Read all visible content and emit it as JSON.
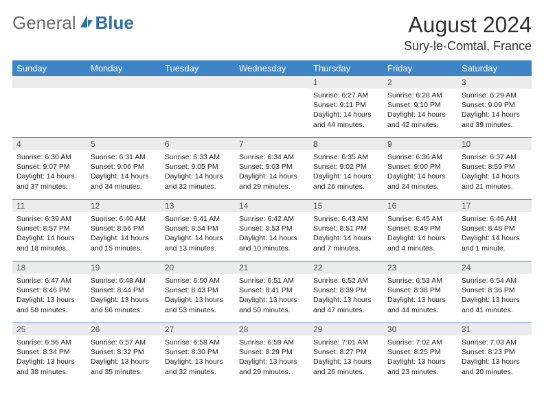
{
  "logo": {
    "general": "General",
    "blue": "Blue"
  },
  "header": {
    "title": "August 2024",
    "location": "Sury-le-Comtal, France"
  },
  "colors": {
    "header_bg": "#3d85c6",
    "header_text": "#ffffff",
    "daynum_bg": "#ececec",
    "row_border": "#3d85c6",
    "logo_gray": "#6b6b6b",
    "logo_blue": "#2f6fa8"
  },
  "weekdays": [
    "Sunday",
    "Monday",
    "Tuesday",
    "Wednesday",
    "Thursday",
    "Friday",
    "Saturday"
  ],
  "weeks": [
    [
      {
        "day": "",
        "lines": []
      },
      {
        "day": "",
        "lines": []
      },
      {
        "day": "",
        "lines": []
      },
      {
        "day": "",
        "lines": []
      },
      {
        "day": "1",
        "lines": [
          "Sunrise: 6:27 AM",
          "Sunset: 9:11 PM",
          "Daylight: 14 hours",
          "and 44 minutes."
        ]
      },
      {
        "day": "2",
        "lines": [
          "Sunrise: 6:28 AM",
          "Sunset: 9:10 PM",
          "Daylight: 14 hours",
          "and 42 minutes."
        ]
      },
      {
        "day": "3",
        "lines": [
          "Sunrise: 6:29 AM",
          "Sunset: 9:09 PM",
          "Daylight: 14 hours",
          "and 39 minutes."
        ]
      }
    ],
    [
      {
        "day": "4",
        "lines": [
          "Sunrise: 6:30 AM",
          "Sunset: 9:07 PM",
          "Daylight: 14 hours",
          "and 37 minutes."
        ]
      },
      {
        "day": "5",
        "lines": [
          "Sunrise: 6:31 AM",
          "Sunset: 9:06 PM",
          "Daylight: 14 hours",
          "and 34 minutes."
        ]
      },
      {
        "day": "6",
        "lines": [
          "Sunrise: 6:33 AM",
          "Sunset: 9:05 PM",
          "Daylight: 14 hours",
          "and 32 minutes."
        ]
      },
      {
        "day": "7",
        "lines": [
          "Sunrise: 6:34 AM",
          "Sunset: 9:03 PM",
          "Daylight: 14 hours",
          "and 29 minutes."
        ]
      },
      {
        "day": "8",
        "lines": [
          "Sunrise: 6:35 AM",
          "Sunset: 9:02 PM",
          "Daylight: 14 hours",
          "and 26 minutes."
        ]
      },
      {
        "day": "9",
        "lines": [
          "Sunrise: 6:36 AM",
          "Sunset: 9:00 PM",
          "Daylight: 14 hours",
          "and 24 minutes."
        ]
      },
      {
        "day": "10",
        "lines": [
          "Sunrise: 6:37 AM",
          "Sunset: 8:59 PM",
          "Daylight: 14 hours",
          "and 21 minutes."
        ]
      }
    ],
    [
      {
        "day": "11",
        "lines": [
          "Sunrise: 6:39 AM",
          "Sunset: 8:57 PM",
          "Daylight: 14 hours",
          "and 18 minutes."
        ]
      },
      {
        "day": "12",
        "lines": [
          "Sunrise: 6:40 AM",
          "Sunset: 8:56 PM",
          "Daylight: 14 hours",
          "and 15 minutes."
        ]
      },
      {
        "day": "13",
        "lines": [
          "Sunrise: 6:41 AM",
          "Sunset: 8:54 PM",
          "Daylight: 14 hours",
          "and 13 minutes."
        ]
      },
      {
        "day": "14",
        "lines": [
          "Sunrise: 6:42 AM",
          "Sunset: 8:53 PM",
          "Daylight: 14 hours",
          "and 10 minutes."
        ]
      },
      {
        "day": "15",
        "lines": [
          "Sunrise: 6:43 AM",
          "Sunset: 8:51 PM",
          "Daylight: 14 hours",
          "and 7 minutes."
        ]
      },
      {
        "day": "16",
        "lines": [
          "Sunrise: 6:45 AM",
          "Sunset: 8:49 PM",
          "Daylight: 14 hours",
          "and 4 minutes."
        ]
      },
      {
        "day": "17",
        "lines": [
          "Sunrise: 6:46 AM",
          "Sunset: 8:48 PM",
          "Daylight: 14 hours",
          "and 1 minute."
        ]
      }
    ],
    [
      {
        "day": "18",
        "lines": [
          "Sunrise: 6:47 AM",
          "Sunset: 8:46 PM",
          "Daylight: 13 hours",
          "and 58 minutes."
        ]
      },
      {
        "day": "19",
        "lines": [
          "Sunrise: 6:48 AM",
          "Sunset: 8:44 PM",
          "Daylight: 13 hours",
          "and 56 minutes."
        ]
      },
      {
        "day": "20",
        "lines": [
          "Sunrise: 6:50 AM",
          "Sunset: 8:43 PM",
          "Daylight: 13 hours",
          "and 53 minutes."
        ]
      },
      {
        "day": "21",
        "lines": [
          "Sunrise: 6:51 AM",
          "Sunset: 8:41 PM",
          "Daylight: 13 hours",
          "and 50 minutes."
        ]
      },
      {
        "day": "22",
        "lines": [
          "Sunrise: 6:52 AM",
          "Sunset: 8:39 PM",
          "Daylight: 13 hours",
          "and 47 minutes."
        ]
      },
      {
        "day": "23",
        "lines": [
          "Sunrise: 6:53 AM",
          "Sunset: 8:38 PM",
          "Daylight: 13 hours",
          "and 44 minutes."
        ]
      },
      {
        "day": "24",
        "lines": [
          "Sunrise: 6:54 AM",
          "Sunset: 8:36 PM",
          "Daylight: 13 hours",
          "and 41 minutes."
        ]
      }
    ],
    [
      {
        "day": "25",
        "lines": [
          "Sunrise: 6:56 AM",
          "Sunset: 8:34 PM",
          "Daylight: 13 hours",
          "and 38 minutes."
        ]
      },
      {
        "day": "26",
        "lines": [
          "Sunrise: 6:57 AM",
          "Sunset: 8:32 PM",
          "Daylight: 13 hours",
          "and 35 minutes."
        ]
      },
      {
        "day": "27",
        "lines": [
          "Sunrise: 6:58 AM",
          "Sunset: 8:30 PM",
          "Daylight: 13 hours",
          "and 32 minutes."
        ]
      },
      {
        "day": "28",
        "lines": [
          "Sunrise: 6:59 AM",
          "Sunset: 8:29 PM",
          "Daylight: 13 hours",
          "and 29 minutes."
        ]
      },
      {
        "day": "29",
        "lines": [
          "Sunrise: 7:01 AM",
          "Sunset: 8:27 PM",
          "Daylight: 13 hours",
          "and 26 minutes."
        ]
      },
      {
        "day": "30",
        "lines": [
          "Sunrise: 7:02 AM",
          "Sunset: 8:25 PM",
          "Daylight: 13 hours",
          "and 23 minutes."
        ]
      },
      {
        "day": "31",
        "lines": [
          "Sunrise: 7:03 AM",
          "Sunset: 8:23 PM",
          "Daylight: 13 hours",
          "and 20 minutes."
        ]
      }
    ]
  ]
}
